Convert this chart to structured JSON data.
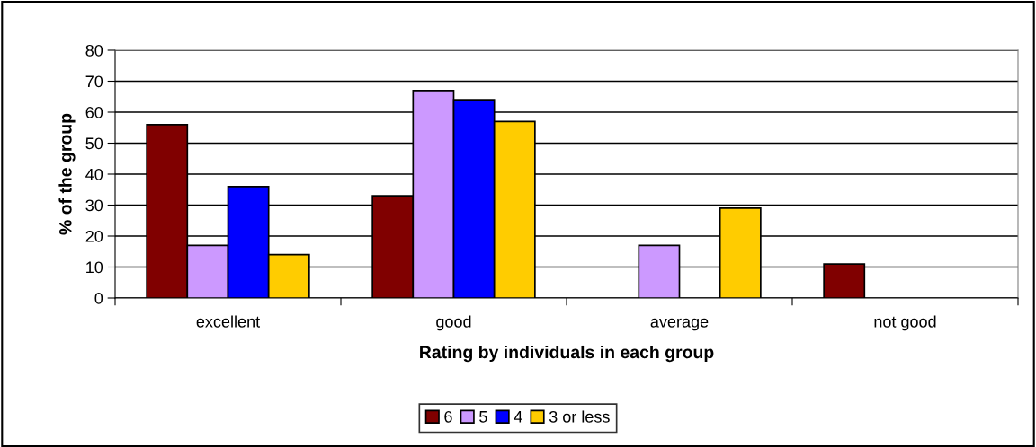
{
  "chart_data": {
    "type": "bar",
    "xlabel": "Rating by individuals in each group",
    "ylabel": "% of the group",
    "categories": [
      "excellent",
      "good",
      "average",
      "not good"
    ],
    "series": [
      {
        "name": "6",
        "color": "#800000",
        "values": [
          56,
          33,
          null,
          11
        ]
      },
      {
        "name": "5",
        "color": "#cc99ff",
        "values": [
          17,
          67,
          17,
          null
        ]
      },
      {
        "name": "4",
        "color": "#0000ff",
        "values": [
          36,
          64,
          null,
          null
        ]
      },
      {
        "name": "3 or less",
        "color": "#ffcc00",
        "values": [
          14,
          57,
          29,
          null
        ]
      }
    ],
    "ylim": [
      0,
      80
    ],
    "yticks": [
      0,
      10,
      20,
      30,
      40,
      50,
      60,
      70,
      80
    ],
    "grid": "y",
    "legend": "bottom"
  }
}
